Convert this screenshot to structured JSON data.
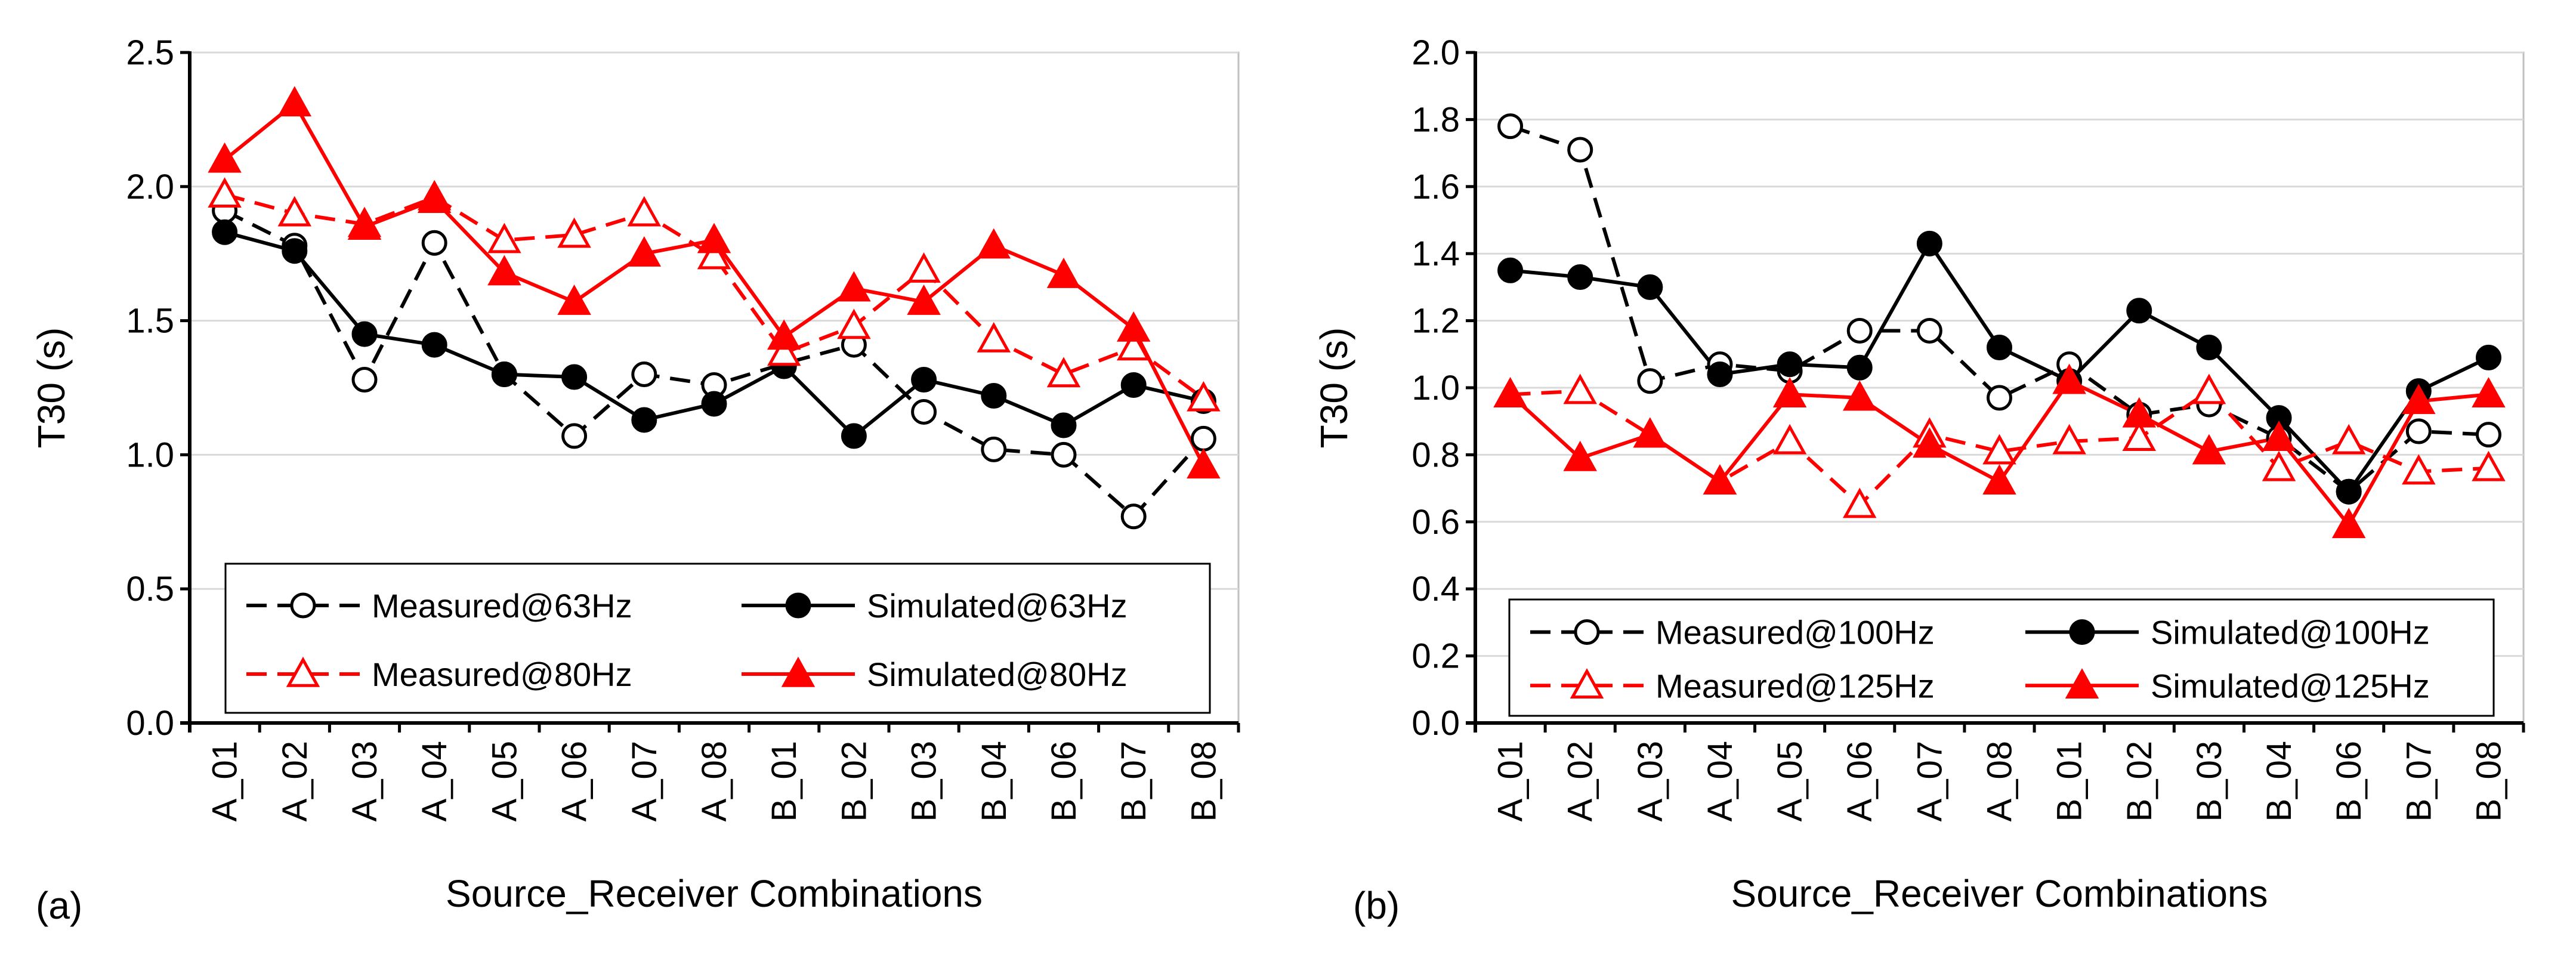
{
  "figure": {
    "panel_a_label": "(a)",
    "panel_b_label": "(b)"
  },
  "chart_data": [
    {
      "type": "line",
      "panel": "(a)",
      "title": "",
      "xlabel": "Source_Receiver Combinations",
      "ylabel": "T30 (s)",
      "ylim": [
        0,
        2.5
      ],
      "yticks": [
        "0.0",
        "0.5",
        "1.0",
        "1.5",
        "2.0",
        "2.5"
      ],
      "grid": true,
      "legend_position": "lower-left",
      "categories": [
        "A_01",
        "A_02",
        "A_03",
        "A_04",
        "A_05",
        "A_06",
        "A_07",
        "A_08",
        "B_01",
        "B_02",
        "B_03",
        "B_04",
        "B_06",
        "B_07",
        "B_08"
      ],
      "series": [
        {
          "name": "Measured@63Hz",
          "color": "#000000",
          "dash": true,
          "marker": "circle-open",
          "values": [
            1.91,
            1.78,
            1.28,
            1.79,
            1.3,
            1.07,
            1.3,
            1.26,
            1.34,
            1.41,
            1.16,
            1.02,
            1.0,
            0.77,
            1.06
          ]
        },
        {
          "name": "Simulated@63Hz",
          "color": "#000000",
          "dash": false,
          "marker": "circle-filled",
          "values": [
            1.83,
            1.76,
            1.45,
            1.41,
            1.3,
            1.29,
            1.13,
            1.19,
            1.33,
            1.07,
            1.28,
            1.22,
            1.11,
            1.26,
            1.2
          ]
        },
        {
          "name": "Measured@80Hz",
          "color": "#ff0000",
          "dash": true,
          "marker": "triangle-open",
          "values": [
            1.97,
            1.9,
            1.86,
            1.96,
            1.8,
            1.82,
            1.9,
            1.74,
            1.38,
            1.48,
            1.69,
            1.43,
            1.3,
            1.4,
            1.21
          ]
        },
        {
          "name": "Simulated@80Hz",
          "color": "#ff0000",
          "dash": false,
          "marker": "triangle-filled",
          "values": [
            2.1,
            2.31,
            1.85,
            1.95,
            1.68,
            1.57,
            1.75,
            1.8,
            1.44,
            1.62,
            1.57,
            1.78,
            1.67,
            1.47,
            0.96
          ]
        }
      ]
    },
    {
      "type": "line",
      "panel": "(b)",
      "title": "",
      "xlabel": "Source_Receiver Combinations",
      "ylabel": "T30 (s)",
      "ylim": [
        0,
        2.0
      ],
      "yticks": [
        "0.0",
        "0.2",
        "0.4",
        "0.6",
        "0.8",
        "1.0",
        "1.2",
        "1.4",
        "1.6",
        "1.8",
        "2.0"
      ],
      "grid": true,
      "legend_position": "lower-left",
      "categories": [
        "A_01",
        "A_02",
        "A_03",
        "A_04",
        "A_05",
        "A_06",
        "A_07",
        "A_08",
        "B_01",
        "B_02",
        "B_03",
        "B_04",
        "B_06",
        "B_07",
        "B_08"
      ],
      "series": [
        {
          "name": "Measured@100Hz",
          "color": "#000000",
          "dash": true,
          "marker": "circle-open",
          "values": [
            1.78,
            1.71,
            1.02,
            1.07,
            1.05,
            1.17,
            1.17,
            0.97,
            1.07,
            0.92,
            0.95,
            0.85,
            0.69,
            0.87,
            0.86
          ]
        },
        {
          "name": "Simulated@100Hz",
          "color": "#000000",
          "dash": false,
          "marker": "circle-filled",
          "values": [
            1.35,
            1.33,
            1.3,
            1.04,
            1.07,
            1.06,
            1.43,
            1.12,
            1.02,
            1.23,
            1.12,
            0.91,
            0.69,
            0.99,
            1.09
          ]
        },
        {
          "name": "Measured@125Hz",
          "color": "#ff0000",
          "dash": true,
          "marker": "triangle-open",
          "values": [
            0.98,
            0.99,
            0.86,
            0.72,
            0.84,
            0.65,
            0.86,
            0.81,
            0.84,
            0.85,
            0.99,
            0.76,
            0.84,
            0.75,
            0.76
          ]
        },
        {
          "name": "Simulated@125Hz",
          "color": "#ff0000",
          "dash": false,
          "marker": "triangle-filled",
          "values": [
            0.98,
            0.79,
            0.86,
            0.72,
            0.98,
            0.97,
            0.83,
            0.72,
            1.02,
            0.92,
            0.81,
            0.85,
            0.59,
            0.96,
            0.98
          ]
        }
      ]
    }
  ]
}
